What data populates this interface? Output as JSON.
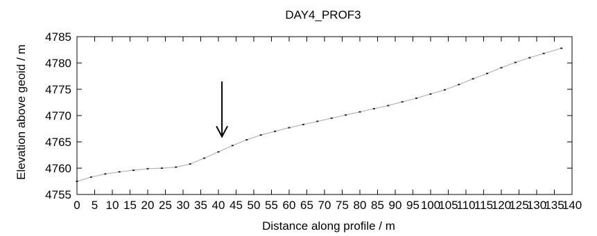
{
  "chart_data": {
    "type": "line",
    "title": "DAY4_PROF3",
    "xlabel": "Distance along profile / m",
    "ylabel": "Elevation above geoid / m",
    "xlim": [
      0,
      140
    ],
    "ylim": [
      4755,
      4785
    ],
    "x_ticks": [
      0,
      5,
      10,
      15,
      20,
      25,
      30,
      35,
      40,
      45,
      50,
      55,
      60,
      65,
      70,
      75,
      80,
      85,
      90,
      95,
      100,
      105,
      110,
      115,
      120,
      125,
      130,
      135,
      140
    ],
    "x_tick_labels": [
      "0",
      "5",
      "10",
      "15",
      "20",
      "25",
      "30",
      "35",
      "40",
      "45",
      "50",
      "55",
      "60",
      "65",
      "70",
      "75",
      "80",
      "85",
      "90",
      "95",
      "100",
      "105",
      "110",
      "115",
      "120",
      "125",
      "130",
      "135",
      "140"
    ],
    "y_ticks": [
      4755,
      4760,
      4765,
      4770,
      4775,
      4780,
      4785
    ],
    "y_tick_labels": [
      "4755",
      "4760",
      "4765",
      "4770",
      "4775",
      "4780",
      "4785"
    ],
    "grid": false,
    "legend": "none",
    "line_color": "#b4b4b4",
    "marker_color": "#222222",
    "series": [
      {
        "x": [
          0,
          4,
          8,
          12,
          16,
          20,
          24,
          28,
          32,
          36,
          40,
          44,
          48,
          52,
          56,
          60,
          64,
          68,
          72,
          76,
          80,
          84,
          88,
          92,
          96,
          100,
          104,
          108,
          112,
          116,
          120,
          124,
          128,
          132,
          137
        ],
        "y": [
          4757.5,
          4758.3,
          4758.9,
          4759.3,
          4759.6,
          4759.9,
          4760.0,
          4760.2,
          4760.8,
          4761.9,
          4763.1,
          4764.3,
          4765.4,
          4766.3,
          4767.0,
          4767.7,
          4768.3,
          4768.9,
          4769.5,
          4770.1,
          4770.7,
          4771.3,
          4771.9,
          4772.6,
          4773.3,
          4774.1,
          4774.9,
          4775.9,
          4777.0,
          4778.0,
          4779.1,
          4780.1,
          4781.0,
          4781.8,
          4782.8
        ]
      }
    ],
    "annotations": [
      {
        "type": "arrow",
        "x": 41,
        "y_from": 4776.5,
        "y_to": 4766
      }
    ]
  }
}
